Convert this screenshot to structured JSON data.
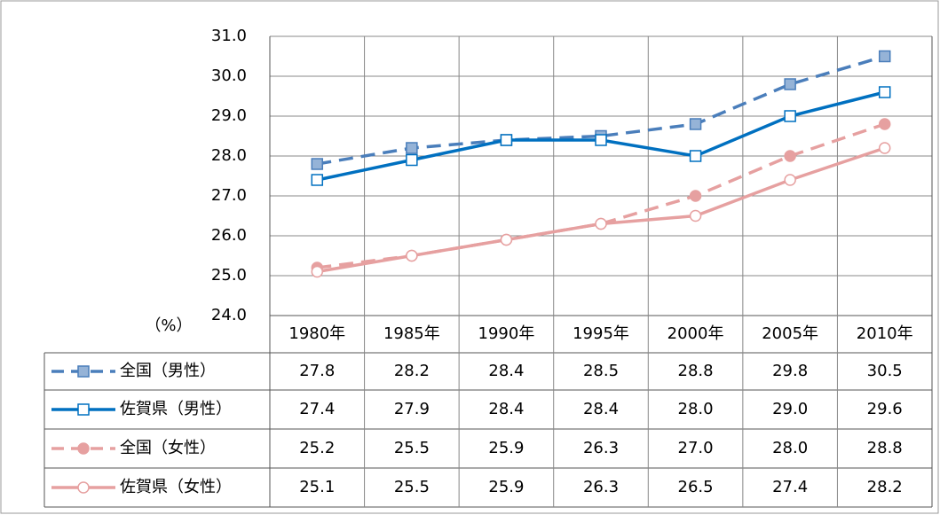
{
  "chart_data": {
    "type": "line",
    "y_unit_label": "（%）",
    "categories": [
      "1980年",
      "1985年",
      "1990年",
      "1995年",
      "2000年",
      "2005年",
      "2010年"
    ],
    "ylim": [
      24,
      31
    ],
    "yticks": [
      {
        "value": 24,
        "label": "24.0"
      },
      {
        "value": 25,
        "label": "25.0"
      },
      {
        "value": 26,
        "label": "26.0"
      },
      {
        "value": 27,
        "label": "27.0"
      },
      {
        "value": 28,
        "label": "28.0"
      },
      {
        "value": 29,
        "label": "29.0"
      },
      {
        "value": 30,
        "label": "30.0"
      },
      {
        "value": 31,
        "label": "31.0"
      }
    ],
    "grid": true,
    "series": [
      {
        "name": "全国（男性）",
        "color": "#4a7ebb",
        "marker_fill": "#95b3d7",
        "marker": "square",
        "dashed": true,
        "values": [
          27.8,
          28.2,
          28.4,
          28.5,
          28.8,
          29.8,
          30.5
        ],
        "value_labels": [
          "27.8",
          "28.2",
          "28.4",
          "28.5",
          "28.8",
          "29.8",
          "30.5"
        ]
      },
      {
        "name": "佐賀県（男性）",
        "color": "#0070c0",
        "marker_fill": "#ffffff",
        "marker": "square",
        "dashed": false,
        "values": [
          27.4,
          27.9,
          28.4,
          28.4,
          28.0,
          29.0,
          29.6
        ],
        "value_labels": [
          "27.4",
          "27.9",
          "28.4",
          "28.4",
          "28.0",
          "29.0",
          "29.6"
        ]
      },
      {
        "name": "全国（女性）",
        "color": "#e6a0a0",
        "marker_fill": "#e6a0a0",
        "marker": "circle",
        "dashed": true,
        "values": [
          25.2,
          25.5,
          25.9,
          26.3,
          27.0,
          28.0,
          28.8
        ],
        "value_labels": [
          "25.2",
          "25.5",
          "25.9",
          "26.3",
          "27.0",
          "28.0",
          "28.8"
        ]
      },
      {
        "name": "佐賀県（女性）",
        "color": "#e6a0a0",
        "marker_fill": "#ffffff",
        "marker": "circle",
        "dashed": false,
        "values": [
          25.1,
          25.5,
          25.9,
          26.3,
          26.5,
          27.4,
          28.2
        ],
        "value_labels": [
          "25.1",
          "25.5",
          "25.9",
          "26.3",
          "26.5",
          "27.4",
          "28.2"
        ]
      }
    ]
  }
}
